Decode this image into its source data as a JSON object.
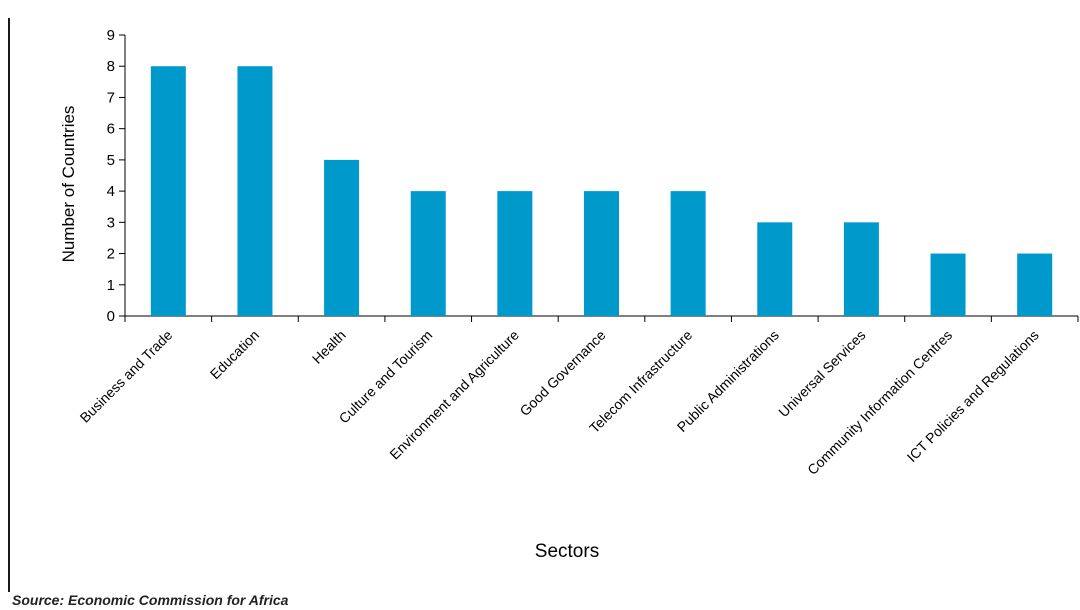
{
  "chart_data": {
    "type": "bar",
    "xlabel": "Sectors",
    "ylabel": "Number of Countries",
    "ylim": [
      0,
      9
    ],
    "yticks": [
      "0",
      "1",
      "2",
      "3",
      "4",
      "5",
      "6",
      "7",
      "8",
      "9"
    ],
    "grid": false,
    "legend": "none",
    "bar_color": "#0099cc",
    "categories": [
      "Business and Trade",
      "Education",
      "Health",
      "Culture and Tourism",
      "Environment and Agriculture",
      "Good Governance",
      "Telecom Infrastructure",
      "Public Administrations",
      "Universal Services",
      "Community Information Centres",
      "ICT Policies and Regulations"
    ],
    "values": [
      8,
      8,
      5,
      4,
      4,
      4,
      4,
      3,
      3,
      2,
      2
    ]
  },
  "source": "Source: Economic Commission for Africa"
}
